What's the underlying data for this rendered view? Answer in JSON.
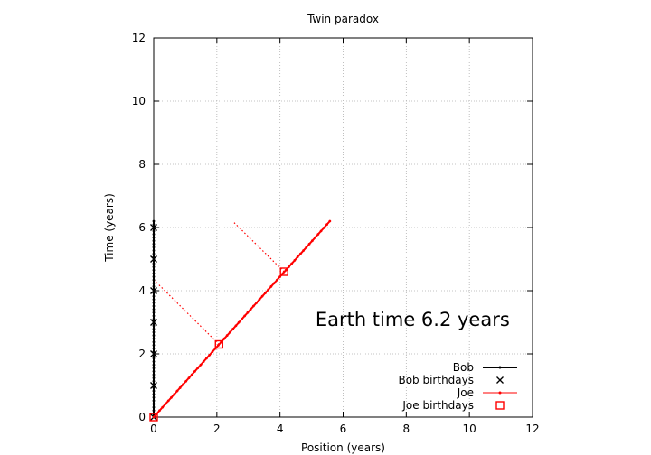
{
  "chart_data": {
    "type": "scatter",
    "title": "Twin paradox",
    "xlabel": "Position (years)",
    "ylabel": "Time (years)",
    "xlim": [
      0,
      12
    ],
    "ylim": [
      0,
      12
    ],
    "x_ticks": [
      "0",
      "2",
      "4",
      "6",
      "8",
      "10",
      "12"
    ],
    "y_ticks": [
      "0",
      "2",
      "4",
      "6",
      "8",
      "10",
      "12"
    ],
    "grid": true,
    "legend_position": "bottom-right",
    "annotation": "Earth time  6.2 years",
    "series": [
      {
        "name": "Bob",
        "style": "line-with-points",
        "color": "#000000",
        "x": [
          0,
          0
        ],
        "y": [
          0,
          6.2
        ]
      },
      {
        "name": "Bob birthdays",
        "style": "cross",
        "color": "#000000",
        "x": [
          0,
          0,
          0,
          0,
          0,
          0,
          0
        ],
        "y": [
          0,
          1,
          2,
          3,
          4,
          5,
          6
        ]
      },
      {
        "name": "Joe",
        "style": "line-with-points",
        "color": "#ff0000",
        "x": [
          0,
          5.58
        ],
        "y": [
          0,
          6.2
        ]
      },
      {
        "name": "Joe birthdays",
        "style": "open-square",
        "color": "#ff0000",
        "x": [
          0,
          2.07,
          4.13
        ],
        "y": [
          0,
          2.3,
          4.6
        ]
      }
    ],
    "simultaneity_lines": [
      {
        "color": "#ff0000",
        "style": "dotted",
        "x": [
          2.07,
          0
        ],
        "y": [
          2.3,
          4.35
        ]
      },
      {
        "color": "#ff0000",
        "style": "dotted",
        "x": [
          4.13,
          2.5
        ],
        "y": [
          4.6,
          6.2
        ]
      }
    ]
  }
}
